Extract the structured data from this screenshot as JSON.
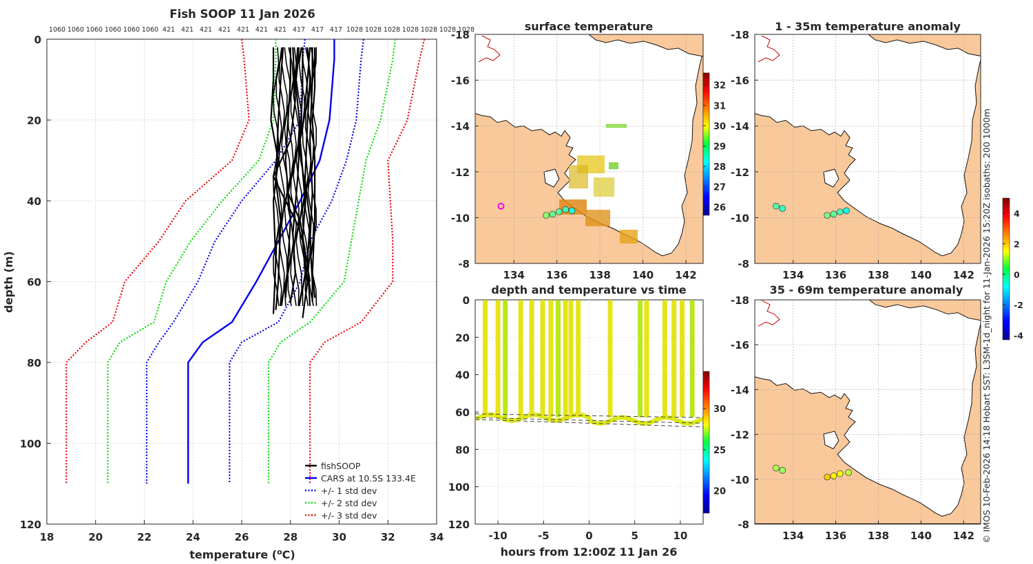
{
  "chart_data": [
    {
      "type": "line",
      "id": "profile",
      "title": "Fish SOOP 11 Jan 2026",
      "xlabel": "temperature (",
      "xlabel_sup": "o",
      "xlabel_tail": "C)",
      "ylabel": "depth (m)",
      "xlim": [
        18,
        34
      ],
      "ylim": [
        0,
        120
      ],
      "xticks": [
        18,
        20,
        22,
        24,
        26,
        28,
        30,
        32,
        34
      ],
      "yticks": [
        0,
        20,
        40,
        60,
        80,
        100,
        120
      ],
      "top_labels": [
        "1060",
        "1060",
        "1060",
        "1060",
        "1060",
        "1060",
        "421",
        "421",
        "421",
        "421",
        "421",
        "421",
        "421",
        "417",
        "417",
        "417",
        "1028",
        "1028",
        "1028",
        "1028",
        "1028",
        "1028",
        "1028"
      ],
      "series": [
        {
          "name": "CARS at 10.5S 133.4E",
          "color": "#0000ee",
          "style": "solid",
          "x": [
            29.8,
            29.8,
            29.6,
            29.2,
            28.4,
            27.5,
            26.6,
            25.6,
            24.4,
            23.8,
            23.8,
            23.8
          ],
          "y": [
            0,
            5,
            20,
            30,
            40,
            50,
            60,
            70,
            75,
            80,
            100,
            110
          ]
        },
        {
          "name": "+/- 1 std dev",
          "color": "#0000ee",
          "style": "dot",
          "x": [
            31.0,
            30.9,
            30.7,
            30.3,
            29.7,
            28.8,
            28.4,
            27.5,
            26.0,
            25.5,
            25.5,
            25.5
          ],
          "y": [
            0,
            5,
            20,
            30,
            40,
            50,
            60,
            70,
            75,
            80,
            100,
            110
          ]
        },
        {
          "name": "-1 std dev",
          "color": "#0000ee",
          "style": "dot",
          "legend": false,
          "x": [
            28.6,
            28.5,
            28.4,
            27.4,
            26.0,
            24.9,
            24.2,
            23.2,
            22.6,
            22.1,
            22.1,
            22.1
          ],
          "y": [
            0,
            5,
            20,
            30,
            40,
            50,
            60,
            70,
            75,
            80,
            100,
            110
          ]
        },
        {
          "name": "+/- 2 std dev",
          "color": "#00dd00",
          "style": "dot",
          "x": [
            32.3,
            32.2,
            31.7,
            31.1,
            30.8,
            30.5,
            30.2,
            28.8,
            27.6,
            27.1,
            27.1,
            27.1
          ],
          "y": [
            0,
            5,
            20,
            30,
            40,
            50,
            60,
            70,
            75,
            80,
            100,
            110
          ]
        },
        {
          "name": "-2 std dev",
          "color": "#00dd00",
          "style": "dot",
          "legend": false,
          "x": [
            27.4,
            27.4,
            27.3,
            26.7,
            25.2,
            23.9,
            22.9,
            22.4,
            21.0,
            20.5,
            20.5,
            20.5
          ],
          "y": [
            0,
            5,
            20,
            30,
            40,
            50,
            60,
            70,
            75,
            80,
            100,
            110
          ]
        },
        {
          "name": "+/- 3 std dev",
          "color": "#ee0000",
          "style": "dot",
          "x": [
            33.5,
            33.3,
            32.8,
            32.0,
            32.1,
            32.2,
            32.2,
            30.9,
            29.4,
            28.8,
            28.8,
            28.8
          ],
          "y": [
            0,
            5,
            20,
            30,
            40,
            50,
            60,
            70,
            75,
            80,
            100,
            110
          ]
        },
        {
          "name": "-3 std dev",
          "color": "#ee0000",
          "style": "dot",
          "legend": false,
          "x": [
            26.0,
            26.1,
            26.3,
            25.6,
            23.7,
            22.6,
            21.2,
            20.7,
            19.6,
            18.8,
            18.8,
            18.8
          ],
          "y": [
            0,
            5,
            20,
            30,
            40,
            50,
            60,
            70,
            75,
            80,
            100,
            110
          ]
        }
      ],
      "fishsoop": {
        "name": "fishSOOP",
        "color": "#000000",
        "profiles": [
          {
            "x": [
              27.3,
              27.3,
              27.2,
              27.5,
              27.3,
              27.4,
              27.3
            ],
            "y": [
              2,
              10,
              20,
              30,
              40,
              55,
              68
            ]
          },
          {
            "x": [
              27.7,
              27.6,
              27.5,
              27.4,
              27.6,
              27.5,
              27.4
            ],
            "y": [
              2,
              10,
              20,
              35,
              45,
              60,
              67
            ]
          },
          {
            "x": [
              28.0,
              28.0,
              27.9,
              27.8,
              28.0,
              27.9,
              27.8
            ],
            "y": [
              2,
              10,
              20,
              30,
              45,
              55,
              64
            ]
          },
          {
            "x": [
              28.3,
              28.2,
              28.4,
              28.3,
              28.1,
              28.2,
              28.0
            ],
            "y": [
              2,
              10,
              22,
              34,
              48,
              58,
              65
            ]
          },
          {
            "x": [
              28.5,
              28.5,
              28.4,
              28.6,
              28.5,
              28.7,
              28.5
            ],
            "y": [
              2,
              12,
              25,
              40,
              50,
              60,
              69
            ]
          },
          {
            "x": [
              28.7,
              28.8,
              28.7,
              28.6,
              28.8,
              28.7,
              28.8
            ],
            "y": [
              2,
              10,
              20,
              35,
              45,
              55,
              66
            ]
          },
          {
            "x": [
              28.9,
              28.9,
              28.8,
              28.9,
              28.8,
              28.9,
              28.9
            ],
            "y": [
              2,
              10,
              25,
              38,
              50,
              60,
              65
            ]
          },
          {
            "x": [
              29.0,
              29.0,
              28.9,
              29.0,
              29.0,
              28.9,
              29.0
            ],
            "y": [
              2,
              12,
              20,
              30,
              45,
              58,
              64
            ]
          },
          {
            "x": [
              28.1,
              28.2,
              28.0,
              27.3,
              27.8,
              28.3,
              28.6
            ],
            "y": [
              2,
              15,
              25,
              34,
              40,
              46,
              52
            ]
          },
          {
            "x": [
              28.8,
              28.7,
              28.5,
              28.2,
              27.9,
              28.4,
              28.8
            ],
            "y": [
              2,
              10,
              22,
              30,
              38,
              45,
              60
            ]
          }
        ]
      },
      "legend": [
        "fishSOOP",
        "CARS at 10.5S 133.4E",
        "+/- 1 std dev",
        "+/- 2 std dev",
        "+/- 3 std dev"
      ],
      "legend_placement": "bottom-right"
    },
    {
      "type": "scatter",
      "id": "surface",
      "title": "surface temperature",
      "xlim": [
        132.2,
        142.8
      ],
      "ylim": [
        -18,
        -8
      ],
      "xticks": [
        134,
        136,
        138,
        140,
        142
      ],
      "yticks": [
        -8,
        -10,
        -12,
        -14,
        -16,
        -18
      ],
      "colorbar": {
        "min": 25.6,
        "max": 32.6,
        "ticks": [
          26,
          27,
          28,
          29,
          30,
          31,
          32
        ]
      },
      "points": [
        {
          "lon": 135.5,
          "lat": -10.1,
          "v": 29.2
        },
        {
          "lon": 135.8,
          "lat": -10.15,
          "v": 29.0
        },
        {
          "lon": 136.1,
          "lat": -10.25,
          "v": 28.9
        },
        {
          "lon": 136.4,
          "lat": -10.35,
          "v": 28.7
        },
        {
          "lon": 136.7,
          "lat": -10.3,
          "v": 28.5
        }
      ],
      "marker": {
        "lon": 133.4,
        "lat": -10.5
      }
    },
    {
      "type": "scatter",
      "id": "anom1",
      "title": "1 - 35m temperature anomaly",
      "xlim": [
        132.2,
        142.8
      ],
      "ylim": [
        -18,
        -8
      ],
      "xticks": [
        134,
        136,
        138,
        140,
        142
      ],
      "yticks": [
        -8,
        -10,
        -12,
        -14,
        -16,
        -18
      ],
      "points": [
        {
          "lon": 133.2,
          "lat": -10.5,
          "v": 0.0
        },
        {
          "lon": 133.5,
          "lat": -10.4,
          "v": -0.3
        },
        {
          "lon": 135.6,
          "lat": -10.1,
          "v": 0.3
        },
        {
          "lon": 135.9,
          "lat": -10.15,
          "v": 0.1
        },
        {
          "lon": 136.2,
          "lat": -10.25,
          "v": -0.2
        },
        {
          "lon": 136.5,
          "lat": -10.3,
          "v": -0.6
        }
      ]
    },
    {
      "type": "scatter",
      "id": "anom2",
      "title": "35 - 69m temperature anomaly",
      "xlim": [
        132.2,
        142.8
      ],
      "ylim": [
        -18,
        -8
      ],
      "xticks": [
        134,
        136,
        138,
        140,
        142
      ],
      "yticks": [
        -8,
        -10,
        -12,
        -14,
        -16,
        -18
      ],
      "points": [
        {
          "lon": 133.2,
          "lat": -10.5,
          "v": 0.8
        },
        {
          "lon": 133.5,
          "lat": -10.4,
          "v": 0.6
        },
        {
          "lon": 135.6,
          "lat": -10.1,
          "v": 2.0
        },
        {
          "lon": 135.9,
          "lat": -10.15,
          "v": 1.6
        },
        {
          "lon": 136.2,
          "lat": -10.25,
          "v": 1.4
        },
        {
          "lon": 136.6,
          "lat": -10.3,
          "v": 0.9
        }
      ],
      "colorbar": {
        "min": -4.3,
        "max": 5.0,
        "ticks": [
          4,
          2,
          0,
          -2,
          -4
        ]
      }
    },
    {
      "type": "scatter",
      "id": "timeseries",
      "title": "depth and temperature vs time",
      "xlabel": "hours from 12:00Z 11 Jan 26",
      "xlim": [
        -12.5,
        12.5
      ],
      "ylim": [
        0,
        120
      ],
      "xticks": [
        -10,
        -5,
        0,
        5,
        10
      ],
      "yticks": [
        0,
        20,
        40,
        60,
        80,
        100,
        120
      ],
      "colorbar": {
        "min": 17.3,
        "max": 34.5,
        "ticks": [
          20,
          25,
          30
        ]
      },
      "casts": [
        -11.4,
        -10.0,
        -9.2,
        -7.5,
        -6.3,
        -5.1,
        -4.2,
        -3.4,
        -2.6,
        -2.0,
        -1.2,
        2.3,
        5.6,
        6.3,
        8.3,
        9.3,
        10.2,
        11.3
      ],
      "bottom_depth": 63
    }
  ],
  "credit": "© IMOS 10-Feb-2026 14:18 Hobart SST: L3SM-1d_night for 11-Jan-2026 15:20Z isobaths: 200  1000m"
}
